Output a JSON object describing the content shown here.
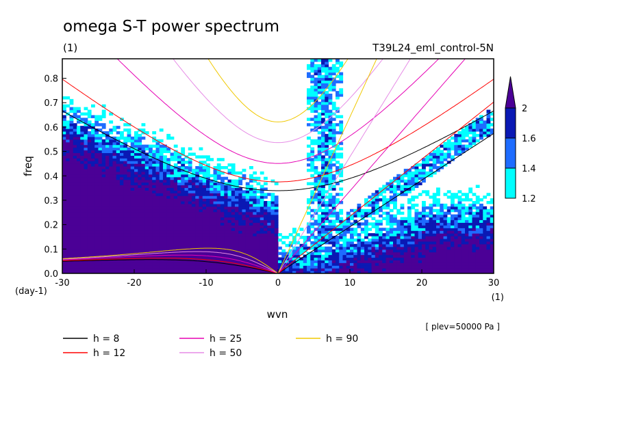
{
  "chart_data": {
    "type": "heatmap",
    "title": "omega S-T power spectrum",
    "units_label": "(1)",
    "experiment": "T39L24_eml_control-5N",
    "level_note": "[ plev=50000 Pa ]",
    "xlabel": "wvn",
    "x_units": "(1)",
    "ylabel": "freq",
    "y_units": "(day-1)",
    "xlim": [
      -30,
      30
    ],
    "ylim": [
      0,
      0.88
    ],
    "x_ticks": [
      -30,
      -20,
      -10,
      0,
      10,
      20,
      30
    ],
    "x_tick_labels": [
      "-30",
      "-20",
      "-10",
      "0",
      "10",
      "20",
      "30"
    ],
    "y_ticks": [
      0,
      0.1,
      0.2,
      0.3,
      0.4,
      0.5,
      0.6,
      0.7,
      0.8
    ],
    "y_tick_labels": [
      "0.0",
      "0.1",
      "0.2",
      "0.3",
      "0.4",
      "0.5",
      "0.6",
      "0.7",
      "0.8"
    ],
    "colorbar": {
      "levels": [
        1.2,
        1.4,
        1.6,
        2
      ],
      "level_labels": [
        "1.2",
        "1.4",
        "1.6",
        "2"
      ],
      "colors": [
        "#ffffff",
        "#00ffff",
        "#1e6cff",
        "#0a19b4",
        "#4b0096"
      ]
    },
    "dispersion_curves": [
      {
        "label": "h =  8",
        "h": 8,
        "color": "#000000"
      },
      {
        "label": "h = 12",
        "h": 12,
        "color": "#ff0000"
      },
      {
        "label": "h = 25",
        "h": 25,
        "color": "#e600b4"
      },
      {
        "label": "h = 50",
        "h": 50,
        "color": "#e68ce6"
      },
      {
        "label": "h = 90",
        "h": 90,
        "color": "#f0c800"
      }
    ]
  }
}
